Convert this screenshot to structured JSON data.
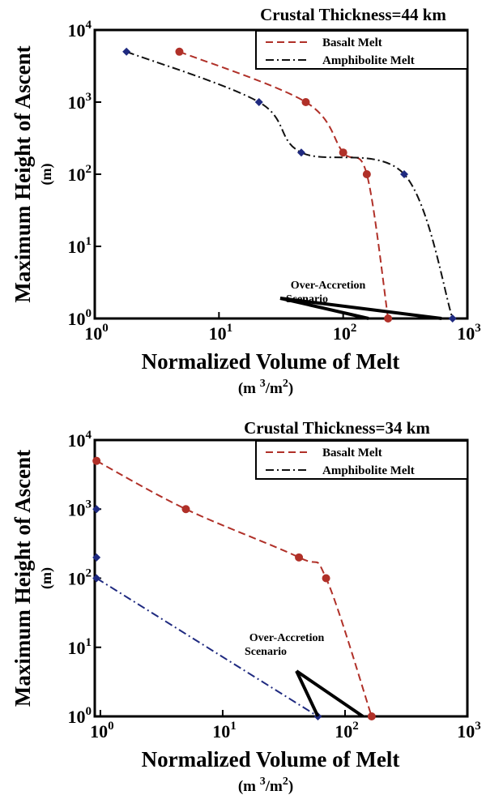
{
  "figure": {
    "ylabel": "Maximum Height of Ascent",
    "ylabel_unit": "(m)",
    "xlabel": "Normalized Volume of Melt",
    "xlabel_unit": "(m3/m2)",
    "annotation": [
      "Over-Accretion",
      "Scenario"
    ],
    "colors": {
      "basalt": "#b03028",
      "amphibolite": "#111111",
      "amphibolite_points": "#1f2a80",
      "axis": "#000000"
    }
  },
  "chart_data": [
    {
      "type": "line",
      "title": "Crustal Thickness=44 km",
      "xlabel": "Normalized Volume of Melt",
      "ylabel": "Maximum Height of Ascent",
      "xscale": "log",
      "yscale": "log",
      "xlim": [
        1,
        1000
      ],
      "ylim": [
        1,
        10000
      ],
      "xticks": [
        {
          "base": "10",
          "exp": "0",
          "value": 1
        },
        {
          "base": "10",
          "exp": "1",
          "value": 10
        },
        {
          "base": "10",
          "exp": "2",
          "value": 100
        },
        {
          "base": "10",
          "exp": "3",
          "value": 1000
        }
      ],
      "yticks": [
        {
          "base": "10",
          "exp": "0",
          "value": 1
        },
        {
          "base": "10",
          "exp": "1",
          "value": 10
        },
        {
          "base": "10",
          "exp": "2",
          "value": 100
        },
        {
          "base": "10",
          "exp": "3",
          "value": 1000
        },
        {
          "base": "10",
          "exp": "4",
          "value": 10000
        }
      ],
      "legend_position": "top-right",
      "grid": false,
      "series": [
        {
          "name": "Basalt Melt",
          "style": "dashed",
          "color": "#b03028",
          "marker": "circle",
          "points": [
            {
              "x": 4.8,
              "y": 5000
            },
            {
              "x": 50,
              "y": 1000
            },
            {
              "x": 100,
              "y": 200
            },
            {
              "x": 155,
              "y": 100
            },
            {
              "x": 230,
              "y": 1
            }
          ]
        },
        {
          "name": "Amphibolite Melt",
          "style": "dashdot",
          "color": "#111111",
          "marker": "diamond",
          "marker_color": "#1f2a80",
          "points": [
            {
              "x": 1.8,
              "y": 5000
            },
            {
              "x": 21,
              "y": 1000
            },
            {
              "x": 46,
              "y": 200
            },
            {
              "x": 310,
              "y": 100
            },
            {
              "x": 760,
              "y": 1
            }
          ]
        }
      ],
      "annotation": {
        "text": [
          "Over-Accretion",
          "Scenario"
        ],
        "points_to": [
          {
            "x": 160,
            "y": 1
          },
          {
            "x": 620,
            "y": 1
          }
        ]
      }
    },
    {
      "type": "line",
      "title": "Crustal Thickness=34 km",
      "xlabel": "Normalized Volume of Melt",
      "ylabel": "Maximum Height of Ascent",
      "xscale": "log",
      "yscale": "log",
      "xlim": [
        0.9,
        1000
      ],
      "ylim": [
        1,
        10000
      ],
      "xticks": [
        {
          "base": "10",
          "exp": "0",
          "value": 1
        },
        {
          "base": "10",
          "exp": "1",
          "value": 10
        },
        {
          "base": "10",
          "exp": "2",
          "value": 100
        },
        {
          "base": "10",
          "exp": "3",
          "value": 1000
        }
      ],
      "yticks": [
        {
          "base": "10",
          "exp": "0",
          "value": 1
        },
        {
          "base": "10",
          "exp": "1",
          "value": 10
        },
        {
          "base": "10",
          "exp": "2",
          "value": 100
        },
        {
          "base": "10",
          "exp": "3",
          "value": 1000
        },
        {
          "base": "10",
          "exp": "4",
          "value": 10000
        }
      ],
      "legend_position": "top-right",
      "grid": false,
      "series": [
        {
          "name": "Basalt Melt",
          "style": "dashed",
          "color": "#b03028",
          "marker": "circle",
          "points": [
            {
              "x": 0.93,
              "y": 5000
            },
            {
              "x": 5,
              "y": 1000
            },
            {
              "x": 42,
              "y": 200
            },
            {
              "x": 70,
              "y": 100
            },
            {
              "x": 165,
              "y": 1
            }
          ]
        },
        {
          "name": "Amphibolite Melt",
          "style": "dashdot",
          "color": "#1f2a80",
          "marker": "diamond",
          "marker_color": "#1f2a80",
          "points": [
            {
              "x": 0.93,
              "y": 1000
            },
            {
              "x": 0.93,
              "y": 200
            },
            {
              "x": 0.93,
              "y": 100
            },
            {
              "x": 60,
              "y": 1
            }
          ]
        }
      ],
      "annotation": {
        "text": [
          "Over-Accretion",
          "Scenario"
        ],
        "points_to": [
          {
            "x": 60,
            "y": 1
          },
          {
            "x": 140,
            "y": 1
          }
        ]
      }
    }
  ]
}
